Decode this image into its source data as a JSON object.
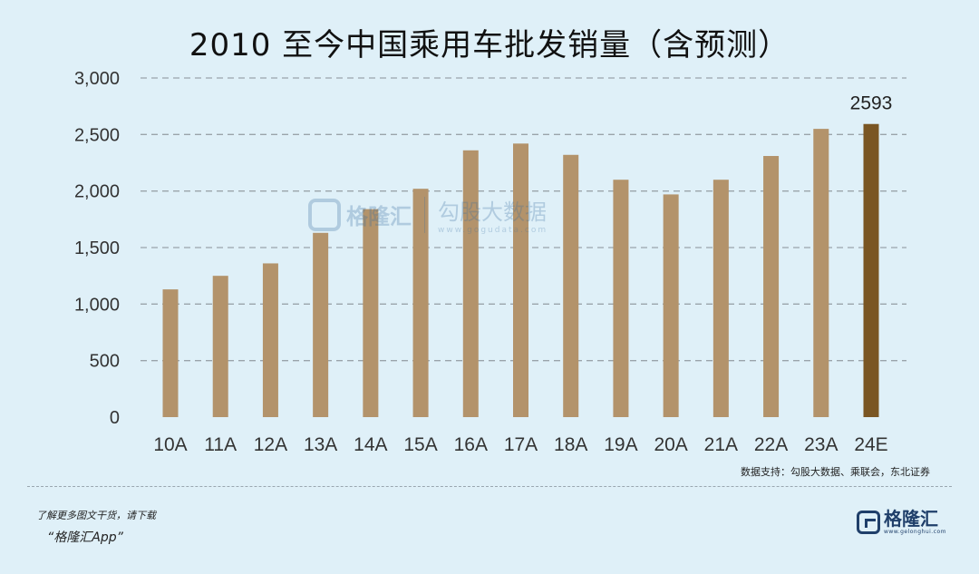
{
  "chart_data": {
    "type": "bar",
    "title": "2010 至今中国乘用车批发销量（含预测）",
    "categories": [
      "10A",
      "11A",
      "12A",
      "13A",
      "14A",
      "15A",
      "16A",
      "17A",
      "18A",
      "19A",
      "20A",
      "21A",
      "22A",
      "23A",
      "24E"
    ],
    "values": [
      1130,
      1250,
      1360,
      1630,
      1840,
      2020,
      2360,
      2420,
      2320,
      2100,
      1970,
      2100,
      2310,
      2550,
      2593
    ],
    "highlight_index": 14,
    "data_labels": [
      {
        "index": 14,
        "text": "2593"
      }
    ],
    "ylim": [
      0,
      3000
    ],
    "yticks": [
      0,
      500,
      1000,
      1500,
      2000,
      2500,
      3000
    ],
    "ytick_labels": [
      "0",
      "500",
      "1,000",
      "1,500",
      "2,000",
      "2,500",
      "3,000"
    ],
    "grid": true,
    "colors": {
      "bar": "#b3936b",
      "highlight": "#7a5623",
      "grid": "#9aa4aa"
    }
  },
  "source": "数据支持：勾股大数据、乘联会，东北证券",
  "footer": {
    "line1": "了解更多图文干货，请下载",
    "line2": "“格隆汇App”",
    "logo_text": "格隆汇",
    "logo_sub": "www.gelonghui.com"
  },
  "watermark": {
    "brand": "格隆汇",
    "name": "勾股大数据",
    "url": "www.gogudata.com"
  }
}
